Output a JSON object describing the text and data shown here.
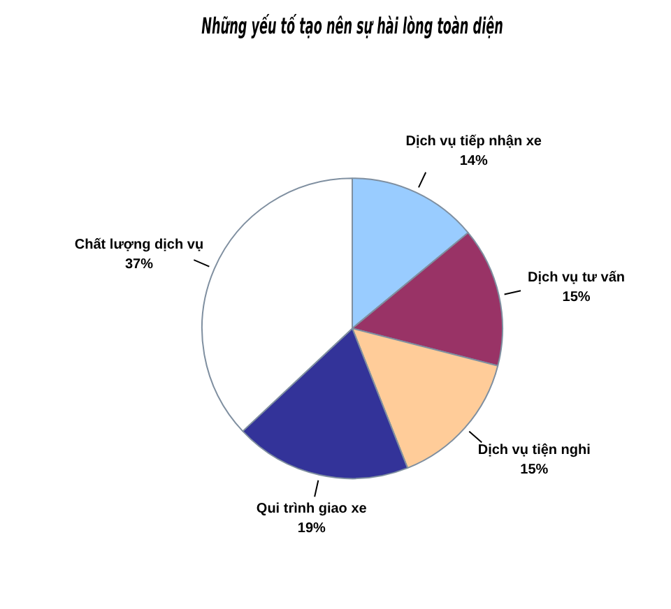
{
  "chart_data": {
    "type": "pie",
    "title": "Những yếu tố tạo nên sự hài lòng toàn diện",
    "categories": [
      "Dịch vụ tiếp nhận xe",
      "Dịch vụ tư vấn",
      "Dịch vụ tiện nghi",
      "Qui trình giao xe",
      "Chất lượng dịch vụ"
    ],
    "values": [
      14,
      15,
      15,
      19,
      37
    ],
    "value_labels": [
      "14%",
      "15%",
      "15%",
      "19%",
      "37%"
    ],
    "colors": [
      "#99ccff",
      "#993366",
      "#ffcc99",
      "#333399",
      "#ffffff"
    ],
    "legend": false
  }
}
